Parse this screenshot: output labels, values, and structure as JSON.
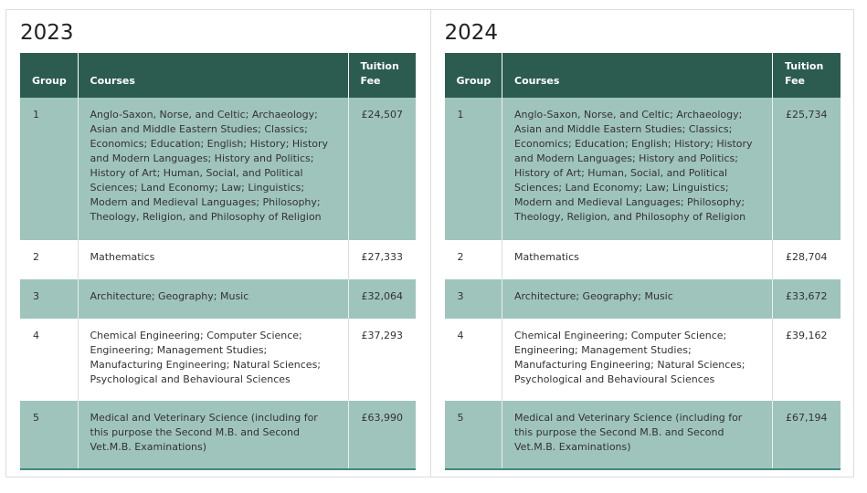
{
  "panels": [
    {
      "title": "2023",
      "table": {
        "headers": [
          "Group",
          "Courses",
          "Tuition Fee"
        ],
        "rows": [
          [
            "1",
            "Anglo-Saxon, Norse, and Celtic; Archaeology; Asian and Middle Eastern Studies; Classics; Economics; Education; English; History; History and Modern Languages; History and Politics; History of Art; Human, Social, and Political Sciences; Land Economy; Law; Linguistics; Modern and Medieval Languages; Philosophy; Theology, Religion, and Philosophy of Religion",
            "£24,507"
          ],
          [
            "2",
            "Mathematics",
            "£27,333"
          ],
          [
            "3",
            "Architecture; Geography; Music",
            "£32,064"
          ],
          [
            "4",
            "Chemical Engineering; Computer Science; Engineering; Management Studies; Manufacturing Engineering; Natural Sciences; Psychological and Behavioural Sciences",
            "£37,293"
          ],
          [
            "5",
            "Medical and Veterinary Science (including for this purpose the Second M.B. and Second Vet.M.B. Examinations)",
            "£63,990"
          ]
        ]
      }
    },
    {
      "title": "2024",
      "table": {
        "headers": [
          "Group",
          "Courses",
          "Tuition Fee"
        ],
        "rows": [
          [
            "1",
            "Anglo-Saxon, Norse, and Celtic; Archaeology; Asian and Middle Eastern Studies; Classics; Economics; Education; English; History; History and Modern Languages; History and Politics; History of Art; Human, Social, and Political Sciences; Land Economy; Law; Linguistics; Modern and Medieval Languages; Philosophy; Theology, Religion, and Philosophy of Religion",
            "£25,734"
          ],
          [
            "2",
            "Mathematics",
            "£28,704"
          ],
          [
            "3",
            "Architecture; Geography; Music",
            "£33,672"
          ],
          [
            "4",
            "Chemical Engineering; Computer Science; Engineering; Management Studies; Manufacturing Engineering; Natural Sciences; Psychological and Behavioural Sciences",
            "£39,162"
          ],
          [
            "5",
            "Medical and Veterinary Science (including for this purpose the Second M.B. and Second Vet.M.B. Examinations)",
            "£67,194"
          ]
        ]
      }
    }
  ]
}
